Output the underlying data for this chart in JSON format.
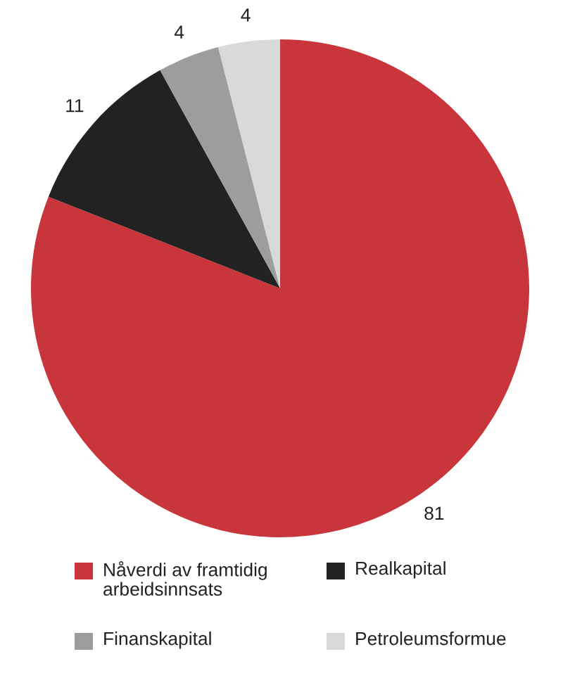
{
  "chart_data": {
    "type": "pie",
    "categories": [
      "Nåverdi av framtidig arbeidsinnsats",
      "Realkapital",
      "Finanskapital",
      "Petroleumsformue"
    ],
    "values": [
      81,
      11,
      4,
      4
    ],
    "colors": [
      "#c8353a",
      "#222222",
      "#9d9d9d",
      "#d9d9d9"
    ],
    "data_labels": true,
    "legend": "bottom"
  }
}
